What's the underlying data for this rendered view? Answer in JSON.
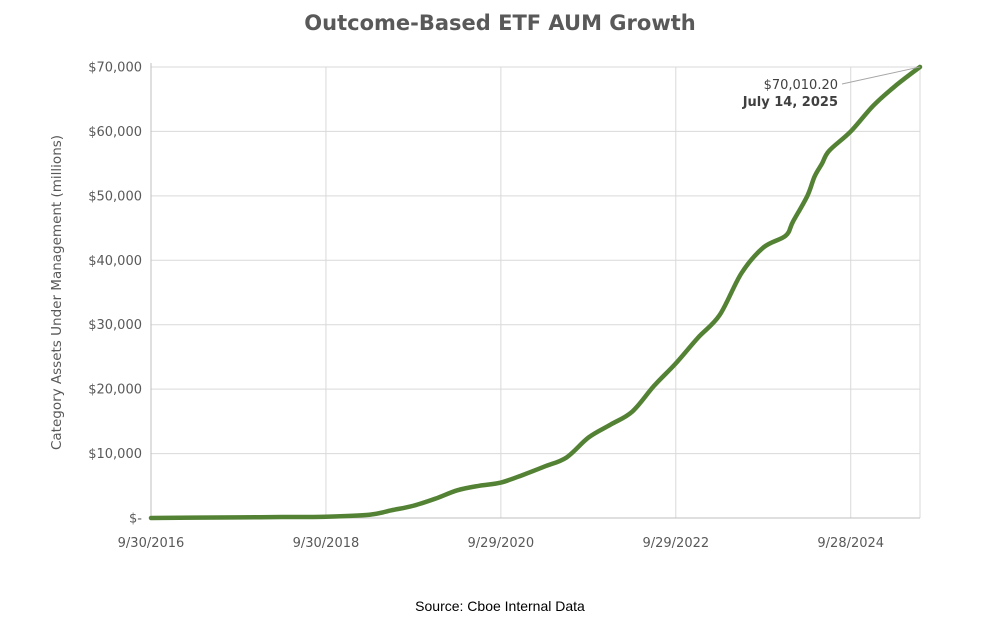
{
  "chart_data": {
    "type": "line",
    "title": "Outcome-Based ETF AUM Growth",
    "ylabel": "Category Assets Under Management (millions)",
    "xlabel": "",
    "xlim": [
      "2016-09-30",
      "2025-07-14"
    ],
    "ylim": [
      0,
      70000
    ],
    "y_ticks": [
      0,
      10000,
      20000,
      30000,
      40000,
      50000,
      60000,
      70000
    ],
    "y_tick_labels": [
      "$-",
      "$10,000",
      "$20,000",
      "$30,000",
      "$40,000",
      "$50,000",
      "$60,000",
      "$70,000"
    ],
    "x_ticks": [
      "2016-09-30",
      "2018-09-30",
      "2020-09-29",
      "2022-09-29",
      "2024-09-28"
    ],
    "x_tick_labels": [
      "9/30/2016",
      "9/30/2018",
      "9/29/2020",
      "9/29/2022",
      "9/28/2024"
    ],
    "grid": true,
    "line_color": "#548235",
    "series": [
      {
        "x": [
          "2016-09-30",
          "2017-03-31",
          "2017-09-30",
          "2018-03-31",
          "2018-09-30",
          "2019-03-31",
          "2019-06-30",
          "2019-09-30",
          "2019-12-31",
          "2020-03-31",
          "2020-06-30",
          "2020-09-29",
          "2020-12-31",
          "2021-03-31",
          "2021-06-30",
          "2021-09-30",
          "2021-12-31",
          "2022-03-31",
          "2022-06-30",
          "2022-09-29",
          "2022-12-31",
          "2023-03-31",
          "2023-06-30",
          "2023-09-30",
          "2023-12-31",
          "2024-01-31",
          "2024-03-31",
          "2024-04-30",
          "2024-05-31",
          "2024-06-30",
          "2024-09-28",
          "2024-12-31",
          "2025-03-31",
          "2025-07-14"
        ],
        "values": [
          0,
          50,
          100,
          150,
          200,
          500,
          1200,
          1900,
          3000,
          4300,
          5000,
          5500,
          6700,
          8000,
          9400,
          12500,
          14500,
          16500,
          20500,
          24000,
          28000,
          31500,
          38000,
          42000,
          43800,
          46000,
          50000,
          53000,
          55000,
          57000,
          60000,
          64000,
          67000,
          70010.2
        ]
      }
    ],
    "annotation": {
      "value": "$70,010.20",
      "date": "July 14, 2025"
    },
    "source": "Source: Cboe Internal Data"
  }
}
